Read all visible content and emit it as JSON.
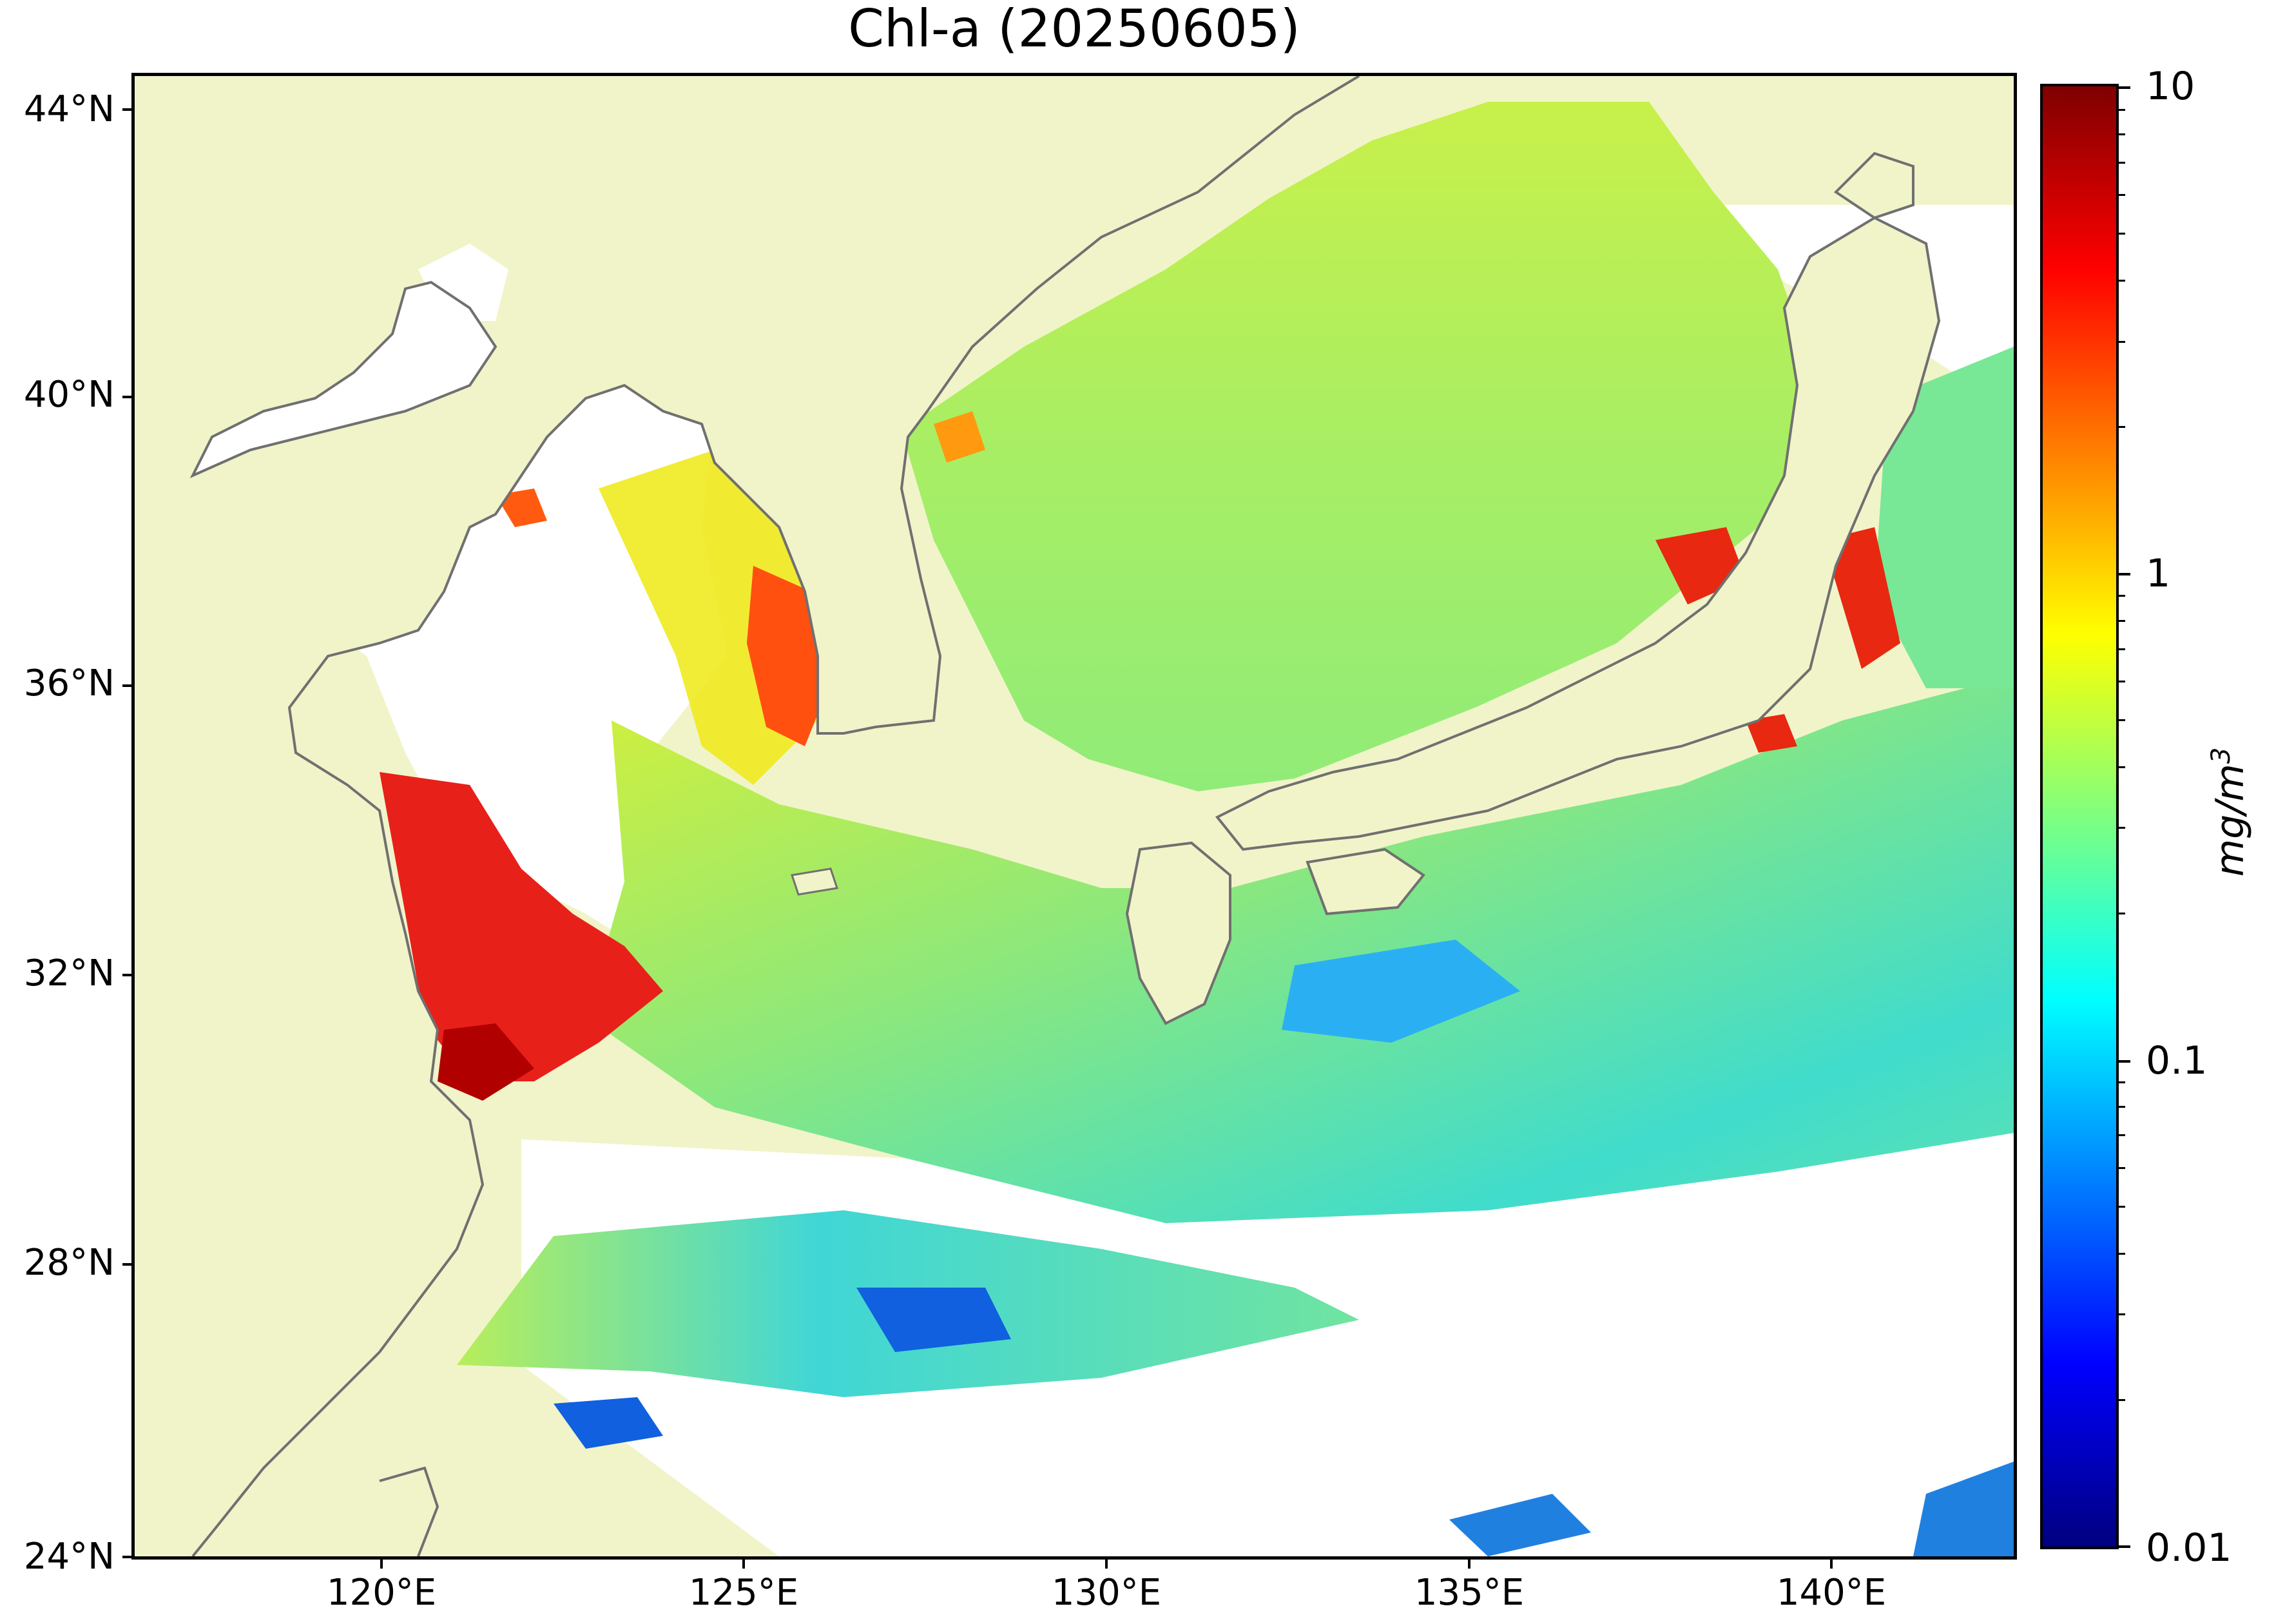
{
  "title": "Chl-a (20250605)",
  "map": {
    "lon_range": [
      117,
      143
    ],
    "lat_range": [
      24,
      44.5
    ],
    "y_ticks": [
      "44°N",
      "40°N",
      "36°N",
      "32°N",
      "28°N",
      "24°N"
    ],
    "x_ticks": [
      "120°E",
      "125°E",
      "130°E",
      "135°E",
      "140°E"
    ],
    "land_color": "#f1f4c9",
    "coast_color": "#707070",
    "no_data_color": "#ffffff"
  },
  "colorbar": {
    "labels": [
      "10",
      "1",
      "0.1",
      "0.01"
    ],
    "unit_base": "mg/m",
    "unit_exp": "3",
    "scale": "log",
    "range": [
      0.01,
      10
    ],
    "colormap": "jet",
    "colors": [
      "#00007f",
      "#0000ff",
      "#007fff",
      "#00ffff",
      "#7fff7f",
      "#ffff00",
      "#ff7f00",
      "#ff0000",
      "#7f0000"
    ]
  }
}
